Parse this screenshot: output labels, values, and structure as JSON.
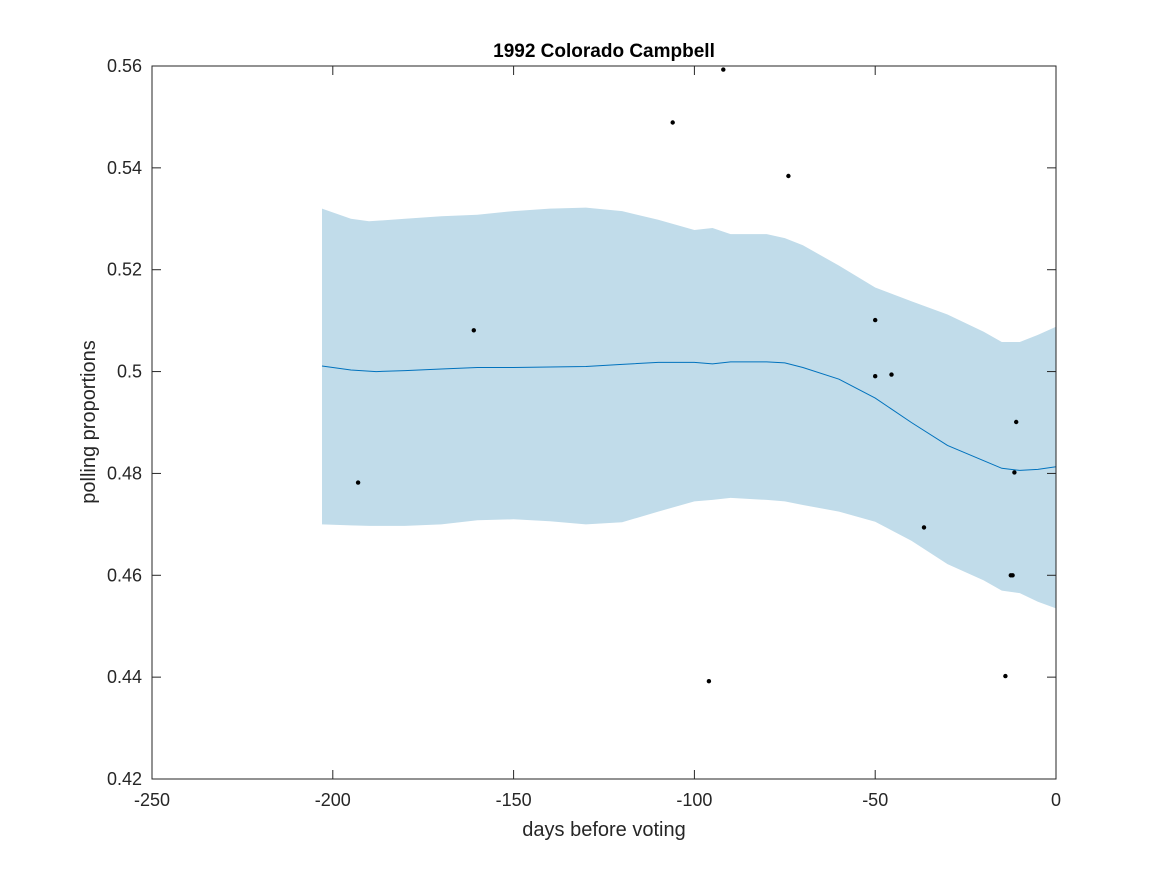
{
  "chart_data": {
    "type": "line",
    "title": "1992 Colorado Campbell",
    "xlabel": "days before voting",
    "ylabel": "polling proportions",
    "xlim": [
      -250,
      0
    ],
    "ylim": [
      0.42,
      0.56
    ],
    "x_ticks": [
      -250,
      -200,
      -150,
      -100,
      -50,
      0
    ],
    "x_tick_labels": [
      "-250",
      "-200",
      "-150",
      "-100",
      "-50",
      "0"
    ],
    "y_ticks": [
      0.42,
      0.44,
      0.46,
      0.48,
      0.5,
      0.52,
      0.54,
      0.56
    ],
    "y_tick_labels": [
      "0.42",
      "0.44",
      "0.46",
      "0.48",
      "0.5",
      "0.52",
      "0.54",
      "0.56"
    ],
    "grid": false,
    "colors": {
      "band": "#c1dcea",
      "line": "#0072bd",
      "points": "#000000",
      "axes": "#262626"
    },
    "band": {
      "x": [
        -203,
        -195,
        -190,
        -180,
        -170,
        -160,
        -150,
        -140,
        -130,
        -120,
        -110,
        -100,
        -95,
        -90,
        -80,
        -75,
        -70,
        -60,
        -50,
        -40,
        -30,
        -20,
        -15,
        -10,
        -5,
        0
      ],
      "upper": [
        0.532,
        0.53,
        0.5295,
        0.53,
        0.5305,
        0.5308,
        0.5315,
        0.532,
        0.5322,
        0.5315,
        0.5298,
        0.5278,
        0.5282,
        0.527,
        0.527,
        0.5262,
        0.5248,
        0.5208,
        0.5165,
        0.5138,
        0.5112,
        0.5078,
        0.5058,
        0.5058,
        0.5072,
        0.5088
      ],
      "lower": [
        0.47,
        0.4698,
        0.4697,
        0.4697,
        0.47,
        0.4708,
        0.471,
        0.4706,
        0.47,
        0.4704,
        0.4725,
        0.4745,
        0.4748,
        0.4752,
        0.4748,
        0.4745,
        0.4738,
        0.4725,
        0.4705,
        0.4668,
        0.4622,
        0.459,
        0.457,
        0.4565,
        0.4548,
        0.4535
      ]
    },
    "series": [
      {
        "x": [
          -203,
          -195,
          -188,
          -180,
          -170,
          -160,
          -150,
          -140,
          -130,
          -120,
          -110,
          -100,
          -95,
          -90,
          -80,
          -75,
          -70,
          -60,
          -50,
          -40,
          -30,
          -20,
          -15,
          -10,
          -5,
          0
        ],
        "values": [
          0.5011,
          0.5003,
          0.5,
          0.5002,
          0.5005,
          0.5008,
          0.5008,
          0.5009,
          0.501,
          0.5014,
          0.5018,
          0.5018,
          0.5015,
          0.5019,
          0.5019,
          0.5017,
          0.5008,
          0.4985,
          0.4948,
          0.49,
          0.4855,
          0.4825,
          0.481,
          0.4806,
          0.4808,
          0.4813
        ]
      }
    ],
    "points": {
      "x": [
        -193,
        -161,
        -106,
        -96,
        -92,
        -74,
        -50,
        -50,
        -45.5,
        -36.5,
        -14,
        -12.5,
        -12,
        -11.5,
        -11
      ],
      "y": [
        0.4782,
        0.5081,
        0.5489,
        0.4392,
        0.5593,
        0.5384,
        0.5101,
        0.4991,
        0.4994,
        0.4694,
        0.4402,
        0.46,
        0.46,
        0.4802,
        0.4901
      ]
    }
  }
}
